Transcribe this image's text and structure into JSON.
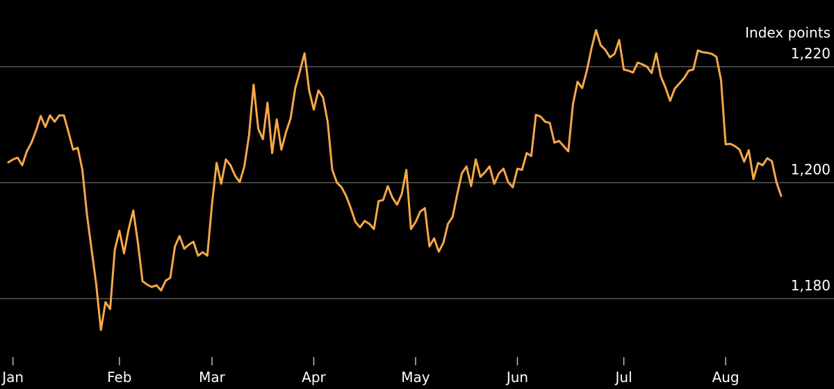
{
  "chart_data": {
    "type": "line",
    "y_axis_label": "Index points",
    "categories": [
      null,
      "Jan",
      null,
      null,
      null,
      null,
      null,
      null,
      null,
      null,
      null,
      null,
      null,
      null,
      null,
      null,
      null,
      null,
      null,
      null,
      null,
      null,
      null,
      null,
      "Feb",
      null,
      null,
      null,
      null,
      null,
      null,
      null,
      null,
      null,
      null,
      null,
      null,
      null,
      null,
      null,
      null,
      null,
      null,
      null,
      "Mar",
      null,
      null,
      null,
      null,
      null,
      null,
      null,
      null,
      null,
      null,
      null,
      null,
      null,
      null,
      null,
      null,
      null,
      null,
      null,
      null,
      null,
      "Apr",
      null,
      null,
      null,
      null,
      null,
      null,
      null,
      null,
      null,
      null,
      null,
      null,
      null,
      null,
      null,
      null,
      null,
      null,
      null,
      null,
      null,
      "May",
      null,
      null,
      null,
      null,
      null,
      null,
      null,
      null,
      null,
      null,
      null,
      null,
      null,
      null,
      null,
      null,
      null,
      null,
      null,
      null,
      null,
      "Jun",
      null,
      null,
      null,
      null,
      null,
      null,
      null,
      null,
      null,
      null,
      null,
      null,
      null,
      null,
      null,
      null,
      null,
      null,
      null,
      null,
      null,
      null,
      "Jul",
      null,
      null,
      null,
      null,
      null,
      null,
      null,
      null,
      null,
      null,
      null,
      null,
      null,
      null,
      null,
      null,
      null,
      null,
      null,
      null,
      null,
      "Aug",
      null,
      null,
      null,
      null,
      null,
      null,
      null,
      null,
      null,
      null,
      null,
      null
    ],
    "series": [
      {
        "color": "#f7a84a",
        "values": [
          1203.5,
          1204.0,
          1204.3,
          1203.0,
          1205.4,
          1206.9,
          1209.0,
          1211.5,
          1209.6,
          1211.6,
          1210.5,
          1211.6,
          1211.6,
          1208.7,
          1205.7,
          1206.0,
          1202.2,
          1194.4,
          1188.4,
          1182.4,
          1174.6,
          1179.4,
          1178.2,
          1188.4,
          1191.7,
          1187.8,
          1192.0,
          1195.2,
          1189.6,
          1183.0,
          1182.4,
          1182.0,
          1182.3,
          1181.4,
          1183.1,
          1183.6,
          1189.0,
          1190.8,
          1188.6,
          1189.3,
          1189.8,
          1187.4,
          1188.0,
          1187.4,
          1196.2,
          1203.4,
          1199.8,
          1204.0,
          1203.0,
          1201.2,
          1200.1,
          1202.8,
          1208.1,
          1216.9,
          1209.3,
          1207.5,
          1213.8,
          1205.1,
          1210.9,
          1205.7,
          1208.7,
          1211.1,
          1216.3,
          1219.2,
          1222.3,
          1215.9,
          1212.6,
          1215.9,
          1214.7,
          1210.5,
          1202.2,
          1200.0,
          1199.2,
          1197.7,
          1195.6,
          1193.2,
          1192.3,
          1193.4,
          1192.9,
          1192.0,
          1196.8,
          1197.0,
          1199.4,
          1197.4,
          1196.2,
          1198.0,
          1202.2,
          1192.0,
          1193.2,
          1195.0,
          1195.6,
          1189.0,
          1190.4,
          1188.1,
          1189.6,
          1192.9,
          1194.1,
          1198.0,
          1201.6,
          1202.8,
          1199.4,
          1204.0,
          1201.0,
          1201.8,
          1202.8,
          1199.8,
          1201.6,
          1202.4,
          1200.1,
          1199.2,
          1202.4,
          1202.2,
          1205.1,
          1204.6,
          1211.7,
          1211.4,
          1210.5,
          1210.3,
          1206.9,
          1207.2,
          1206.3,
          1205.4,
          1213.5,
          1217.4,
          1216.3,
          1219.3,
          1223.1,
          1226.3,
          1223.7,
          1222.9,
          1221.6,
          1222.2,
          1224.6,
          1219.5,
          1219.3,
          1219.0,
          1220.7,
          1220.4,
          1220.0,
          1218.9,
          1222.3,
          1218.3,
          1216.4,
          1214.1,
          1216.2,
          1217.1,
          1218.0,
          1219.3,
          1219.5,
          1222.8,
          1222.5,
          1222.4,
          1222.2,
          1221.7,
          1217.7,
          1206.6,
          1206.7,
          1206.3,
          1205.7,
          1203.6,
          1205.6,
          1200.6,
          1203.4,
          1203.0,
          1204.2,
          1203.7,
          1200.0,
          1197.7
        ]
      }
    ],
    "ylim": [
      1171.6,
      1227.9
    ],
    "yticks": [
      {
        "value": 1180,
        "label": "1,180"
      },
      {
        "value": 1200,
        "label": "1,200"
      },
      {
        "value": 1220,
        "label": "1,220"
      }
    ],
    "grid": true
  }
}
